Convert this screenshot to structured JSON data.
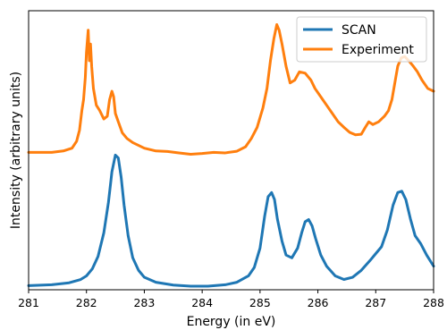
{
  "chart_data": {
    "type": "line",
    "xlabel": "Energy (in eV)",
    "ylabel": "Intensity (arbitrary units)",
    "xlim": [
      281,
      288
    ],
    "xticks": [
      281,
      282,
      283,
      284,
      285,
      286,
      287,
      288
    ],
    "y_ticks_shown": false,
    "grid": false,
    "legend_position": "top-right",
    "series": [
      {
        "name": "SCAN",
        "color": "#1f77b4",
        "points": [
          [
            281.0,
            0.01
          ],
          [
            281.4,
            0.013
          ],
          [
            281.7,
            0.02
          ],
          [
            281.9,
            0.032
          ],
          [
            282.0,
            0.045
          ],
          [
            282.1,
            0.07
          ],
          [
            282.2,
            0.115
          ],
          [
            282.3,
            0.2
          ],
          [
            282.38,
            0.31
          ],
          [
            282.44,
            0.42
          ],
          [
            282.5,
            0.48
          ],
          [
            282.55,
            0.47
          ],
          [
            282.6,
            0.4
          ],
          [
            282.65,
            0.3
          ],
          [
            282.72,
            0.19
          ],
          [
            282.8,
            0.11
          ],
          [
            282.9,
            0.065
          ],
          [
            283.0,
            0.04
          ],
          [
            283.2,
            0.022
          ],
          [
            283.5,
            0.012
          ],
          [
            283.8,
            0.008
          ],
          [
            284.1,
            0.008
          ],
          [
            284.4,
            0.013
          ],
          [
            284.6,
            0.022
          ],
          [
            284.8,
            0.045
          ],
          [
            284.9,
            0.075
          ],
          [
            285.0,
            0.145
          ],
          [
            285.08,
            0.26
          ],
          [
            285.14,
            0.33
          ],
          [
            285.2,
            0.345
          ],
          [
            285.25,
            0.32
          ],
          [
            285.3,
            0.25
          ],
          [
            285.38,
            0.17
          ],
          [
            285.45,
            0.12
          ],
          [
            285.55,
            0.11
          ],
          [
            285.65,
            0.145
          ],
          [
            285.72,
            0.2
          ],
          [
            285.78,
            0.24
          ],
          [
            285.84,
            0.248
          ],
          [
            285.9,
            0.225
          ],
          [
            285.96,
            0.18
          ],
          [
            286.05,
            0.12
          ],
          [
            286.15,
            0.08
          ],
          [
            286.3,
            0.045
          ],
          [
            286.45,
            0.032
          ],
          [
            286.6,
            0.04
          ],
          [
            286.75,
            0.065
          ],
          [
            286.9,
            0.1
          ],
          [
            287.0,
            0.125
          ],
          [
            287.1,
            0.15
          ],
          [
            287.2,
            0.21
          ],
          [
            287.3,
            0.3
          ],
          [
            287.38,
            0.345
          ],
          [
            287.45,
            0.35
          ],
          [
            287.52,
            0.32
          ],
          [
            287.6,
            0.25
          ],
          [
            287.68,
            0.19
          ],
          [
            287.78,
            0.16
          ],
          [
            287.88,
            0.12
          ],
          [
            288.0,
            0.08
          ]
        ]
      },
      {
        "name": "Experiment",
        "color": "#ff7f0e",
        "points": [
          [
            281.0,
            0.49
          ],
          [
            281.2,
            0.49
          ],
          [
            281.4,
            0.49
          ],
          [
            281.6,
            0.495
          ],
          [
            281.75,
            0.505
          ],
          [
            281.83,
            0.53
          ],
          [
            281.88,
            0.57
          ],
          [
            281.92,
            0.64
          ],
          [
            281.95,
            0.68
          ],
          [
            281.98,
            0.76
          ],
          [
            282.0,
            0.85
          ],
          [
            282.03,
            0.93
          ],
          [
            282.05,
            0.82
          ],
          [
            282.07,
            0.88
          ],
          [
            282.09,
            0.8
          ],
          [
            282.12,
            0.72
          ],
          [
            282.17,
            0.66
          ],
          [
            282.23,
            0.64
          ],
          [
            282.3,
            0.61
          ],
          [
            282.36,
            0.62
          ],
          [
            282.4,
            0.68
          ],
          [
            282.44,
            0.71
          ],
          [
            282.47,
            0.69
          ],
          [
            282.5,
            0.63
          ],
          [
            282.55,
            0.6
          ],
          [
            282.62,
            0.56
          ],
          [
            282.7,
            0.54
          ],
          [
            282.8,
            0.525
          ],
          [
            283.0,
            0.505
          ],
          [
            283.2,
            0.495
          ],
          [
            283.4,
            0.493
          ],
          [
            283.6,
            0.488
          ],
          [
            283.8,
            0.483
          ],
          [
            284.0,
            0.486
          ],
          [
            284.2,
            0.49
          ],
          [
            284.4,
            0.488
          ],
          [
            284.6,
            0.494
          ],
          [
            284.75,
            0.51
          ],
          [
            284.85,
            0.54
          ],
          [
            284.95,
            0.58
          ],
          [
            285.05,
            0.65
          ],
          [
            285.12,
            0.72
          ],
          [
            285.18,
            0.82
          ],
          [
            285.24,
            0.9
          ],
          [
            285.29,
            0.95
          ],
          [
            285.33,
            0.93
          ],
          [
            285.38,
            0.88
          ],
          [
            285.45,
            0.8
          ],
          [
            285.52,
            0.74
          ],
          [
            285.6,
            0.75
          ],
          [
            285.68,
            0.78
          ],
          [
            285.78,
            0.775
          ],
          [
            285.88,
            0.75
          ],
          [
            285.95,
            0.72
          ],
          [
            286.05,
            0.69
          ],
          [
            286.15,
            0.66
          ],
          [
            286.25,
            0.63
          ],
          [
            286.35,
            0.6
          ],
          [
            286.45,
            0.58
          ],
          [
            286.55,
            0.562
          ],
          [
            286.65,
            0.553
          ],
          [
            286.75,
            0.555
          ],
          [
            286.82,
            0.58
          ],
          [
            286.88,
            0.6
          ],
          [
            286.95,
            0.59
          ],
          [
            287.05,
            0.6
          ],
          [
            287.15,
            0.62
          ],
          [
            287.22,
            0.64
          ],
          [
            287.28,
            0.68
          ],
          [
            287.33,
            0.74
          ],
          [
            287.38,
            0.8
          ],
          [
            287.44,
            0.83
          ],
          [
            287.5,
            0.835
          ],
          [
            287.57,
            0.82
          ],
          [
            287.65,
            0.8
          ],
          [
            287.72,
            0.78
          ],
          [
            287.8,
            0.75
          ],
          [
            287.9,
            0.72
          ],
          [
            288.0,
            0.71
          ]
        ]
      }
    ]
  }
}
